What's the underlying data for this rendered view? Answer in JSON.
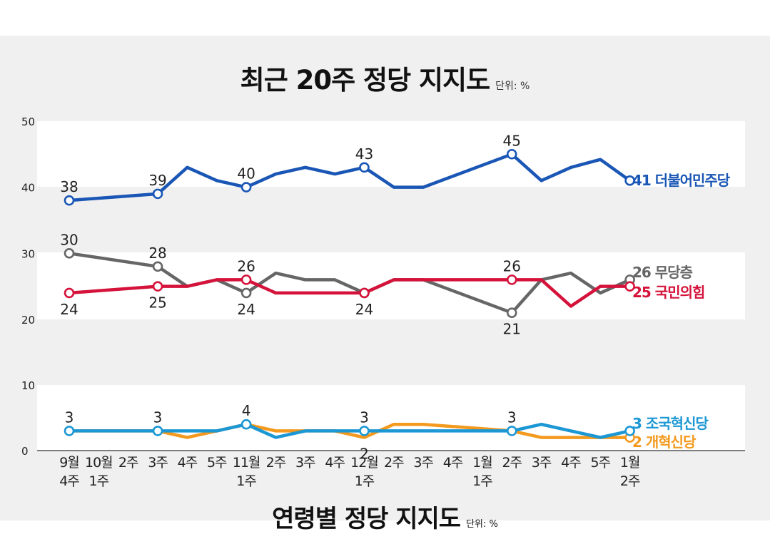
{
  "title": "최근 20주 정당 지지도",
  "unit": "단위: %",
  "next_title": "연령별 정당 지지도",
  "next_unit": "단위: %",
  "chart_data": {
    "type": "line",
    "title": "최근 20주 정당 지지도",
    "unit": "단위: %",
    "x_labels": [
      [
        "9월",
        "4주"
      ],
      [
        "10월",
        "1주"
      ],
      [
        "2주"
      ],
      [
        "3주"
      ],
      [
        "4주"
      ],
      [
        "5주"
      ],
      [
        "11월",
        "1주"
      ],
      [
        "2주"
      ],
      [
        "3주"
      ],
      [
        "4주"
      ],
      [
        "12월",
        "1주"
      ],
      [
        "2주"
      ],
      [
        "3주"
      ],
      [
        "4주"
      ],
      [
        "1월",
        "1주"
      ],
      [
        "2주"
      ],
      [
        "3주"
      ],
      [
        "4주"
      ],
      [
        "5주"
      ],
      [
        "1월",
        "2주"
      ]
    ],
    "x": [
      0,
      1,
      2,
      3,
      4,
      5,
      6,
      7,
      8,
      9,
      10,
      11,
      12,
      13,
      14,
      15,
      16,
      17,
      18,
      19
    ],
    "y_ticks": [
      0,
      10,
      20,
      30,
      40,
      50
    ],
    "ylim": [
      0,
      50
    ],
    "y_axis_break": [
      10,
      20
    ],
    "series": [
      {
        "name": "더불어민주당",
        "color": "#1a56b5",
        "values": [
          38,
          null,
          null,
          39,
          43,
          41,
          40,
          42,
          43,
          42,
          43,
          40,
          40,
          null,
          null,
          45,
          41,
          43,
          44.2,
          41
        ],
        "markers": [
          0,
          3,
          6,
          10,
          15,
          19
        ],
        "labels": [
          {
            "i": 0,
            "text": "38"
          },
          {
            "i": 3,
            "text": "39"
          },
          {
            "i": 6,
            "text": "40"
          },
          {
            "i": 10,
            "text": "43"
          },
          {
            "i": 15,
            "text": "45"
          }
        ],
        "end_label": "41 더불어민주당"
      },
      {
        "name": "무당층",
        "color": "#666666",
        "values": [
          30,
          null,
          null,
          28,
          25,
          26,
          24,
          27,
          26,
          26,
          24,
          26,
          26,
          null,
          null,
          21,
          26,
          27,
          24,
          26
        ],
        "markers": [
          0,
          3,
          6,
          10,
          15,
          19
        ],
        "labels": [
          {
            "i": 0,
            "text": "30"
          },
          {
            "i": 3,
            "text": "28"
          },
          {
            "i": 6,
            "text": "24"
          },
          {
            "i": 15,
            "text": "21"
          }
        ],
        "end_label": "26 무당층"
      },
      {
        "name": "국민의힘",
        "color": "#d5133a",
        "values": [
          24,
          null,
          null,
          25,
          25,
          26,
          26,
          24,
          24,
          24,
          24,
          26,
          26,
          null,
          null,
          26,
          26,
          22,
          25,
          25
        ],
        "markers": [
          0,
          3,
          6,
          10,
          15,
          19
        ],
        "labels": [
          {
            "i": 0,
            "text": "24"
          },
          {
            "i": 3,
            "text": "25"
          },
          {
            "i": 6,
            "text": "26"
          },
          {
            "i": 10,
            "text": "24"
          },
          {
            "i": 15,
            "text": "26"
          }
        ],
        "end_label": "25 국민의힘"
      },
      {
        "name": "개혁신당",
        "color": "#f39a1e",
        "values": [
          3,
          null,
          null,
          3,
          2,
          3,
          4,
          3,
          3,
          3,
          2,
          4,
          4,
          null,
          null,
          3,
          2,
          2,
          2,
          2
        ],
        "markers": [
          19
        ],
        "labels": [
          {
            "i": 10,
            "text": "2"
          }
        ],
        "end_label": "2 개혁신당"
      },
      {
        "name": "조국혁신당",
        "color": "#1b97d4",
        "values": [
          3,
          null,
          null,
          3,
          3,
          3,
          4,
          2,
          3,
          3,
          3,
          3,
          3,
          null,
          null,
          3,
          4,
          3,
          2,
          3
        ],
        "markers": [
          0,
          3,
          6,
          10,
          15,
          19
        ],
        "labels": [
          {
            "i": 0,
            "text": "3"
          },
          {
            "i": 3,
            "text": "3"
          },
          {
            "i": 6,
            "text": "4"
          },
          {
            "i": 10,
            "text": "3"
          },
          {
            "i": 15,
            "text": "3"
          }
        ],
        "end_label": "3 조국혁신당"
      }
    ]
  }
}
